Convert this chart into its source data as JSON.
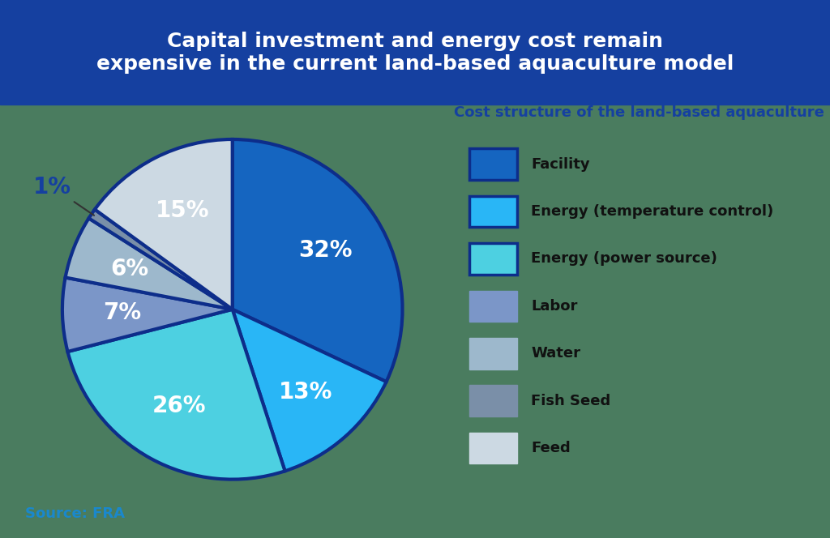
{
  "title": "Capital investment and energy cost remain\nexpensive in the current land-based aquaculture model",
  "subtitle": "Cost structure of the land-based aquaculture",
  "source": "Source: FRA",
  "slices": [
    32,
    13,
    26,
    7,
    6,
    1,
    15
  ],
  "labels": [
    "32%",
    "13%",
    "26%",
    "7%",
    "6%",
    "1%",
    "15%"
  ],
  "legend_labels": [
    "Facility",
    "Energy (temperature control)",
    "Energy (power source)",
    "Labor",
    "Water",
    "Fish Seed",
    "Feed"
  ],
  "colors": [
    "#1565c0",
    "#29b6f6",
    "#4dd0e1",
    "#7b96c8",
    "#9db8cc",
    "#7a8fa8",
    "#ccd9e3"
  ],
  "edge_color": "#0d2d8a",
  "background_color": "#4a7c5f",
  "title_bg_color": "#1540a0",
  "title_text_color": "#ffffff",
  "subtitle_color": "#1540a0",
  "source_color": "#1a88cc",
  "legend_border_colors": [
    "#0d2d8a",
    "#0d2d8a",
    "#0d2d8a",
    "none",
    "none",
    "none",
    "none"
  ],
  "startangle": 90,
  "pct_label_color_white": "#ffffff",
  "pct_label_color_dark": "#1540a0",
  "pct_label_size": 20
}
